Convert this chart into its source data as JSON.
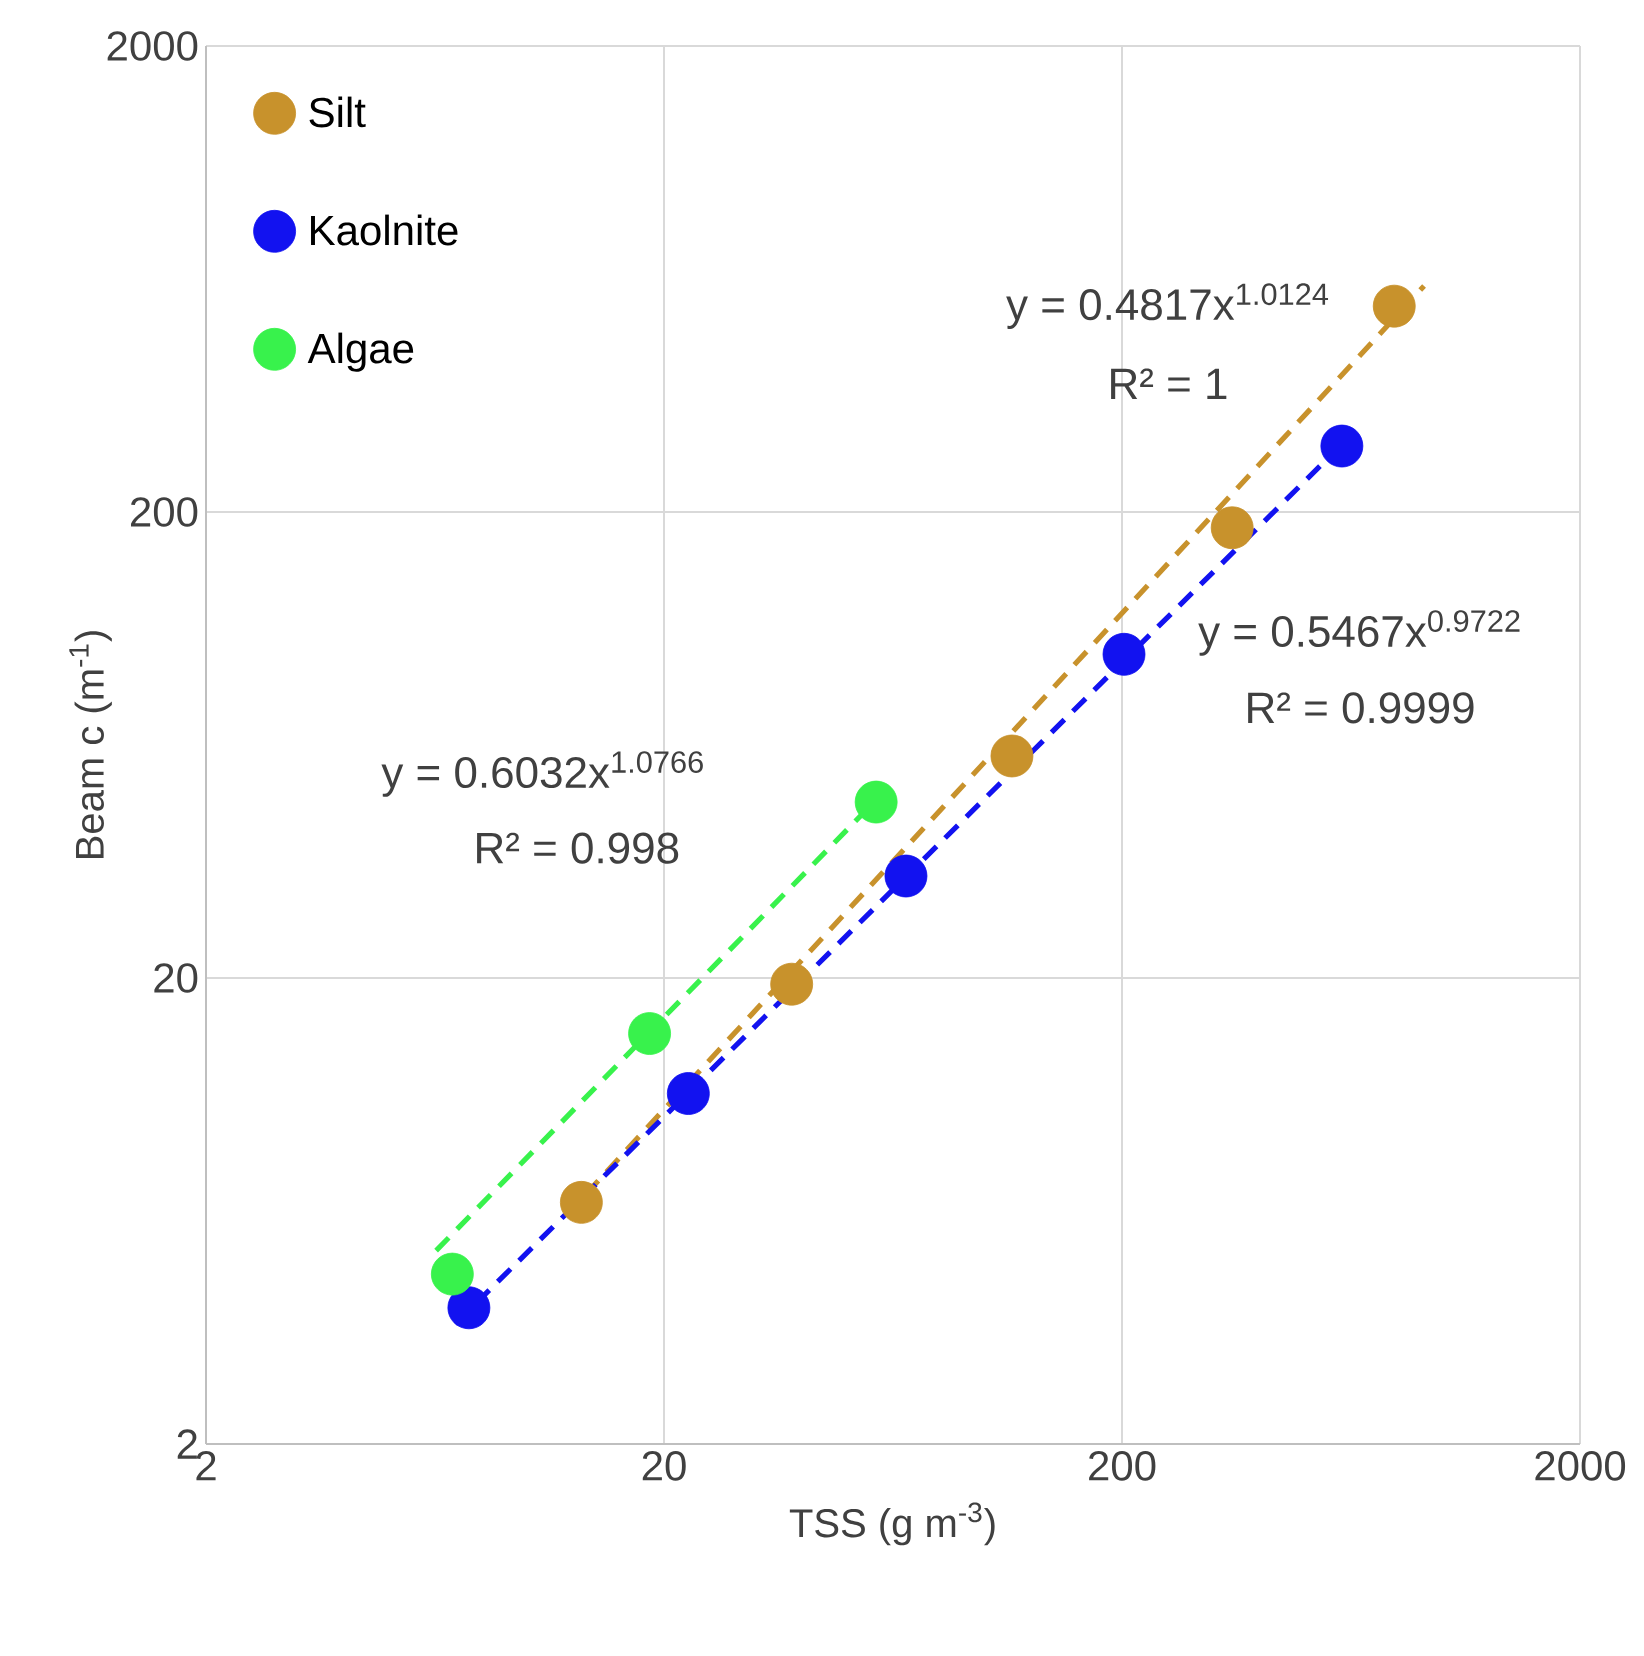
{
  "chart_data": {
    "type": "scatter",
    "xlabel": "TSS (g m$^{-3}$)",
    "ylabel": "Beam c (m$^{-1}$)",
    "log": "xy",
    "xlim": [
      2,
      2000
    ],
    "ylim": [
      2,
      2000
    ],
    "xticks": [
      2,
      20,
      200,
      2000
    ],
    "yticks": [
      2,
      20,
      200,
      2000
    ],
    "grid": true,
    "legend": "top left",
    "marker": "circle",
    "series": [
      {
        "name": "Silt",
        "color": "#c8922c",
        "x": [
          13.2,
          38,
          115,
          348,
          786
        ],
        "values": [
          6.6,
          19.4,
          59.9,
          185,
          553
        ]
      },
      {
        "name": "Kaolnite",
        "color": "#1212f0",
        "x": [
          7.5,
          22.6,
          67.5,
          202,
          604
        ],
        "values": [
          3.92,
          11.3,
          33.1,
          99,
          277
        ]
      },
      {
        "name": "Algae",
        "color": "#38f24c",
        "x": [
          6.9,
          18.6,
          58.1
        ],
        "values": [
          4.63,
          15.2,
          47.7
        ]
      },
      {
        "type": "line",
        "line_style": "dashed",
        "marker": "none",
        "color": "#c8922c",
        "x": [
          12.2,
          913
        ],
        "values": [
          6.17,
          611
        ]
      },
      {
        "type": "line",
        "line_style": "dashed",
        "marker": "none",
        "color": "#1212f0",
        "x": [
          7.0,
          630
        ],
        "values": [
          3.62,
          291
        ]
      },
      {
        "type": "line",
        "line_style": "dashed",
        "marker": "none",
        "color": "#38f24c",
        "x": [
          6.36,
          59.3
        ],
        "values": [
          5.2,
          49.2
        ]
      }
    ],
    "annotations": [
      "y = 0.4817x$^{1.0124}$",
      "R² = 1",
      "y = 0.5467x$^{0.9722}$",
      "R² = 0.9999",
      "y = 0.6032x$^{1.0766}$",
      "R² = 0.998"
    ]
  }
}
